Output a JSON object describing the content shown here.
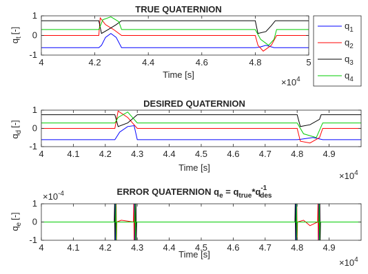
{
  "chart_data": [
    {
      "type": "line",
      "title": "TRUE QUATERNION",
      "xlabel": "Time [s]",
      "ylabel_main": "q",
      "ylabel_sub": "t",
      "ylabel_unit": "[-]",
      "xlim": [
        40000,
        50000
      ],
      "ylim": [
        -1,
        1
      ],
      "xticks": [
        40000,
        42000,
        44000,
        46000,
        48000,
        50000
      ],
      "xtick_labels": [
        "4",
        "4.2",
        "4.4",
        "4.6",
        "4.8",
        "5"
      ],
      "yticks": [
        -1,
        0,
        1
      ],
      "ytick_labels": [
        "-1",
        "0",
        "1"
      ],
      "x_exponent_base": "×10",
      "x_exponent_power": "4",
      "series": [
        {
          "key": "q1",
          "color": "#0000ff",
          "points": [
            [
              40000,
              -0.62
            ],
            [
              42150,
              -0.62
            ],
            [
              42250,
              -0.5
            ],
            [
              42400,
              -0.1
            ],
            [
              42600,
              0.1
            ],
            [
              42800,
              -0.1
            ],
            [
              43000,
              -0.62
            ],
            [
              48000,
              -0.62
            ],
            [
              48150,
              -0.6
            ],
            [
              48400,
              -0.5
            ],
            [
              48700,
              -0.62
            ],
            [
              50000,
              -0.62
            ]
          ]
        },
        {
          "key": "q2",
          "color": "#ff0000",
          "points": [
            [
              40000,
              0.0
            ],
            [
              42150,
              0.0
            ],
            [
              42200,
              0.9
            ],
            [
              42400,
              0.55
            ],
            [
              42700,
              0.3
            ],
            [
              43000,
              0.0
            ],
            [
              48000,
              0.0
            ],
            [
              48100,
              -0.5
            ],
            [
              48300,
              -0.8
            ],
            [
              48600,
              -0.5
            ],
            [
              48800,
              0.0
            ],
            [
              50000,
              0.0
            ]
          ]
        },
        {
          "key": "q3",
          "color": "#000000",
          "points": [
            [
              40000,
              0.75
            ],
            [
              42150,
              0.75
            ],
            [
              42250,
              0.1
            ],
            [
              42500,
              0.3
            ],
            [
              42800,
              0.55
            ],
            [
              43000,
              0.75
            ],
            [
              48000,
              0.75
            ],
            [
              48100,
              0.1
            ],
            [
              48400,
              0.2
            ],
            [
              48600,
              0.5
            ],
            [
              48750,
              0.75
            ],
            [
              50000,
              0.75
            ]
          ]
        },
        {
          "key": "q4",
          "color": "#00cc00",
          "points": [
            [
              40000,
              0.3
            ],
            [
              42150,
              0.3
            ],
            [
              42300,
              0.8
            ],
            [
              42600,
              0.95
            ],
            [
              42900,
              0.7
            ],
            [
              43000,
              0.3
            ],
            [
              48000,
              0.3
            ],
            [
              48200,
              -0.2
            ],
            [
              48500,
              -0.5
            ],
            [
              48700,
              -0.2
            ],
            [
              48800,
              0.3
            ],
            [
              50000,
              0.3
            ]
          ]
        }
      ],
      "legend_entries": [
        {
          "main": "q",
          "sub": "1",
          "color": "#0000ff"
        },
        {
          "main": "q",
          "sub": "2",
          "color": "#ff0000"
        },
        {
          "main": "q",
          "sub": "3",
          "color": "#000000"
        },
        {
          "main": "q",
          "sub": "4",
          "color": "#00cc00"
        }
      ],
      "legend": "right"
    },
    {
      "type": "line",
      "title": "DESIRED QUATERNION",
      "xlabel": "Time [s]",
      "ylabel_main": "q",
      "ylabel_sub": "d",
      "ylabel_unit": "[-]",
      "xlim": [
        40000,
        50000
      ],
      "ylim": [
        -1,
        1
      ],
      "xticks": [
        40000,
        41000,
        42000,
        43000,
        44000,
        45000,
        46000,
        47000,
        48000,
        49000
      ],
      "xtick_labels": [
        "4",
        "4.1",
        "4.2",
        "4.3",
        "4.4",
        "4.5",
        "4.6",
        "4.7",
        "4.8",
        "4.9"
      ],
      "yticks": [
        -1,
        0,
        1
      ],
      "ytick_labels": [
        "-1",
        "0",
        "1"
      ],
      "x_exponent_base": "×10",
      "x_exponent_power": "4",
      "series": [
        {
          "key": "q1",
          "color": "#0000ff",
          "points": [
            [
              40000,
              -0.62
            ],
            [
              42300,
              -0.62
            ],
            [
              42450,
              -0.2
            ],
            [
              42700,
              0.1
            ],
            [
              42900,
              0.15
            ],
            [
              43000,
              -0.62
            ],
            [
              48000,
              -0.62
            ],
            [
              48100,
              -0.6
            ],
            [
              48500,
              -0.5
            ],
            [
              48800,
              -0.62
            ],
            [
              50000,
              -0.62
            ]
          ]
        },
        {
          "key": "q2",
          "color": "#ff0000",
          "points": [
            [
              40000,
              0.0
            ],
            [
              42300,
              0.0
            ],
            [
              42400,
              0.95
            ],
            [
              42700,
              0.6
            ],
            [
              43000,
              0.0
            ],
            [
              48000,
              0.0
            ],
            [
              48100,
              -0.7
            ],
            [
              48400,
              -0.8
            ],
            [
              48700,
              -0.5
            ],
            [
              48800,
              0.0
            ],
            [
              50000,
              0.0
            ]
          ]
        },
        {
          "key": "q3",
          "color": "#000000",
          "points": [
            [
              40000,
              0.75
            ],
            [
              42300,
              0.75
            ],
            [
              42400,
              0.1
            ],
            [
              42700,
              0.3
            ],
            [
              43000,
              0.75
            ],
            [
              48000,
              0.75
            ],
            [
              48100,
              0.1
            ],
            [
              48400,
              0.2
            ],
            [
              48700,
              0.5
            ],
            [
              48750,
              0.75
            ],
            [
              50000,
              0.75
            ]
          ]
        },
        {
          "key": "q4",
          "color": "#00cc00",
          "points": [
            [
              40000,
              0.3
            ],
            [
              42300,
              0.3
            ],
            [
              42400,
              0.6
            ],
            [
              42700,
              0.9
            ],
            [
              43000,
              0.3
            ],
            [
              48000,
              0.3
            ],
            [
              48200,
              -0.3
            ],
            [
              48600,
              -0.5
            ],
            [
              48800,
              0.3
            ],
            [
              50000,
              0.3
            ]
          ]
        }
      ]
    },
    {
      "type": "line",
      "title_main": "ERROR QUATERNION q",
      "title_sub1": "e",
      "title_mid": " = q",
      "title_sub2": "true",
      "title_star": "*q",
      "title_sup": "-1",
      "title_sub3": "des",
      "xlabel": "Time [s]",
      "ylabel_main": "q",
      "ylabel_sub": "e",
      "ylabel_unit": "[-]",
      "xlim": [
        40000,
        50000
      ],
      "ylim": [
        -1,
        1
      ],
      "y_exponent_base": "×10",
      "y_exponent_power": "-4",
      "xticks": [
        40000,
        41000,
        42000,
        43000,
        44000,
        45000,
        46000,
        47000,
        48000,
        49000
      ],
      "xtick_labels": [
        "4",
        "4.1",
        "4.2",
        "4.3",
        "4.4",
        "4.5",
        "4.6",
        "4.7",
        "4.8",
        "4.9"
      ],
      "yticks": [
        -1,
        0,
        1
      ],
      "ytick_labels": [
        "-1",
        "0",
        "1"
      ],
      "x_exponent_base": "×10",
      "x_exponent_power": "4",
      "series": [
        {
          "key": "q1",
          "color": "#0000ff",
          "points": [
            [
              40000,
              0
            ],
            [
              42300,
              0
            ],
            [
              42310,
              1
            ],
            [
              42320,
              -1
            ],
            [
              42330,
              0
            ],
            [
              42900,
              0
            ],
            [
              42910,
              1
            ],
            [
              42920,
              -1
            ],
            [
              42930,
              0
            ],
            [
              47950,
              0
            ],
            [
              47960,
              1
            ],
            [
              47970,
              -1
            ],
            [
              47980,
              0
            ],
            [
              48660,
              0
            ],
            [
              48670,
              1
            ],
            [
              48680,
              -1
            ],
            [
              48690,
              0
            ],
            [
              50000,
              0
            ]
          ]
        },
        {
          "key": "q2",
          "color": "#ff0000",
          "points": [
            [
              40000,
              0
            ],
            [
              42330,
              0
            ],
            [
              42340,
              1
            ],
            [
              42350,
              -1
            ],
            [
              42360,
              0
            ],
            [
              42500,
              0.1
            ],
            [
              42700,
              0.05
            ],
            [
              42880,
              0
            ],
            [
              42890,
              1
            ],
            [
              42900,
              -1
            ],
            [
              42910,
              0
            ],
            [
              47980,
              0
            ],
            [
              47990,
              1
            ],
            [
              48000,
              -1
            ],
            [
              48010,
              0
            ],
            [
              48200,
              0.1
            ],
            [
              48400,
              -0.2
            ],
            [
              48640,
              0
            ],
            [
              48650,
              1
            ],
            [
              48660,
              -1
            ],
            [
              48670,
              0
            ],
            [
              50000,
              0
            ]
          ]
        },
        {
          "key": "q3",
          "color": "#000000",
          "points": [
            [
              40000,
              0
            ],
            [
              42280,
              0
            ],
            [
              42290,
              1
            ],
            [
              42300,
              -1
            ],
            [
              42310,
              0
            ],
            [
              42950,
              0
            ],
            [
              42960,
              1
            ],
            [
              42970,
              -1
            ],
            [
              42980,
              0
            ],
            [
              47930,
              0
            ],
            [
              47940,
              1
            ],
            [
              47950,
              -1
            ],
            [
              47960,
              0
            ],
            [
              48700,
              0
            ],
            [
              48710,
              1
            ],
            [
              48720,
              -1
            ],
            [
              48730,
              0
            ],
            [
              50000,
              0
            ]
          ]
        },
        {
          "key": "q4",
          "color": "#00cc00",
          "points": [
            [
              40000,
              0
            ],
            [
              42320,
              0
            ],
            [
              42330,
              1
            ],
            [
              42340,
              -1
            ],
            [
              42350,
              0
            ],
            [
              42920,
              0
            ],
            [
              42930,
              1
            ],
            [
              42940,
              -1
            ],
            [
              42950,
              0
            ],
            [
              47970,
              0
            ],
            [
              47980,
              1
            ],
            [
              47990,
              -1
            ],
            [
              48000,
              0
            ],
            [
              48680,
              0
            ],
            [
              48690,
              1
            ],
            [
              48700,
              -1
            ],
            [
              48710,
              0
            ],
            [
              50000,
              0
            ]
          ]
        }
      ]
    }
  ]
}
